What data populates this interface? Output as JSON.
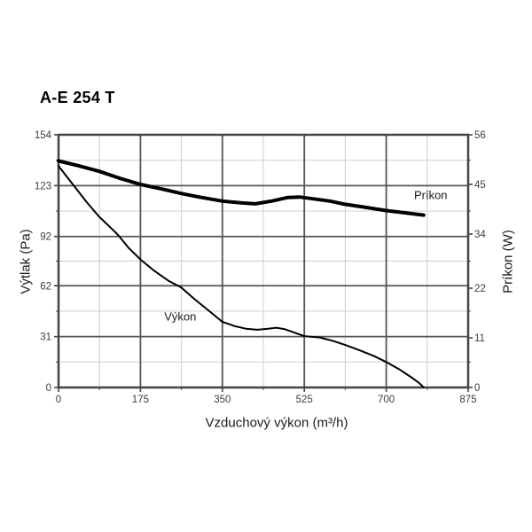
{
  "chart_data": {
    "type": "line",
    "title": "A-E 254 T",
    "x_axis": {
      "label": "Vzduchový výkon (m³/h)",
      "range": [
        0,
        875
      ],
      "ticks": [
        0,
        175,
        350,
        525,
        700,
        875
      ]
    },
    "y_left": {
      "label": "Výtlak (Pa)",
      "range": [
        0,
        154
      ],
      "ticks": [
        0,
        31,
        62,
        92,
        123,
        154
      ]
    },
    "y_right": {
      "label": "Príkon (W)",
      "range": [
        0,
        56
      ],
      "ticks": [
        0,
        11,
        22,
        34,
        45,
        56
      ]
    },
    "grid": {
      "major": true,
      "minor": true
    },
    "legend_position": "inline-labels",
    "colors": {
      "curve": "#000000",
      "grid_major": "#555555",
      "grid_minor": "#d4d4d4",
      "axis": "#444444",
      "text": "#3d3d3d"
    },
    "series": [
      {
        "name": "Výkon",
        "axis": "left",
        "units": "Pa",
        "width": 2,
        "label_pos": {
          "x": 260,
          "y": 43
        },
        "points": [
          [
            0,
            135
          ],
          [
            30,
            124
          ],
          [
            60,
            113
          ],
          [
            87,
            104
          ],
          [
            120,
            95
          ],
          [
            130,
            92
          ],
          [
            150,
            85
          ],
          [
            175,
            78
          ],
          [
            205,
            71
          ],
          [
            235,
            65
          ],
          [
            262,
            61
          ],
          [
            290,
            54
          ],
          [
            320,
            47
          ],
          [
            350,
            40
          ],
          [
            375,
            37.5
          ],
          [
            400,
            35.8
          ],
          [
            425,
            35.2
          ],
          [
            448,
            35.8
          ],
          [
            465,
            36.4
          ],
          [
            482,
            35.6
          ],
          [
            500,
            33.8
          ],
          [
            525,
            31.3
          ],
          [
            558,
            30.5
          ],
          [
            585,
            28.5
          ],
          [
            612,
            26
          ],
          [
            645,
            22.5
          ],
          [
            675,
            19
          ],
          [
            700,
            15.5
          ],
          [
            728,
            11
          ],
          [
            752,
            6.5
          ],
          [
            770,
            2.8
          ],
          [
            780,
            0
          ]
        ]
      },
      {
        "name": "Príkon",
        "axis": "right",
        "units": "W",
        "width": 4,
        "label_pos": {
          "x": 795,
          "y": 42.5
        },
        "points": [
          [
            0,
            50.2
          ],
          [
            40,
            49.2
          ],
          [
            87,
            47.9
          ],
          [
            130,
            46.4
          ],
          [
            175,
            45
          ],
          [
            220,
            44
          ],
          [
            262,
            43
          ],
          [
            300,
            42.2
          ],
          [
            350,
            41.3
          ],
          [
            390,
            40.9
          ],
          [
            420,
            40.7
          ],
          [
            455,
            41.3
          ],
          [
            490,
            42.1
          ],
          [
            515,
            42.2
          ],
          [
            545,
            41.8
          ],
          [
            580,
            41.3
          ],
          [
            612,
            40.6
          ],
          [
            650,
            40
          ],
          [
            700,
            39.2
          ],
          [
            740,
            38.7
          ],
          [
            780,
            38.2
          ]
        ]
      }
    ]
  }
}
